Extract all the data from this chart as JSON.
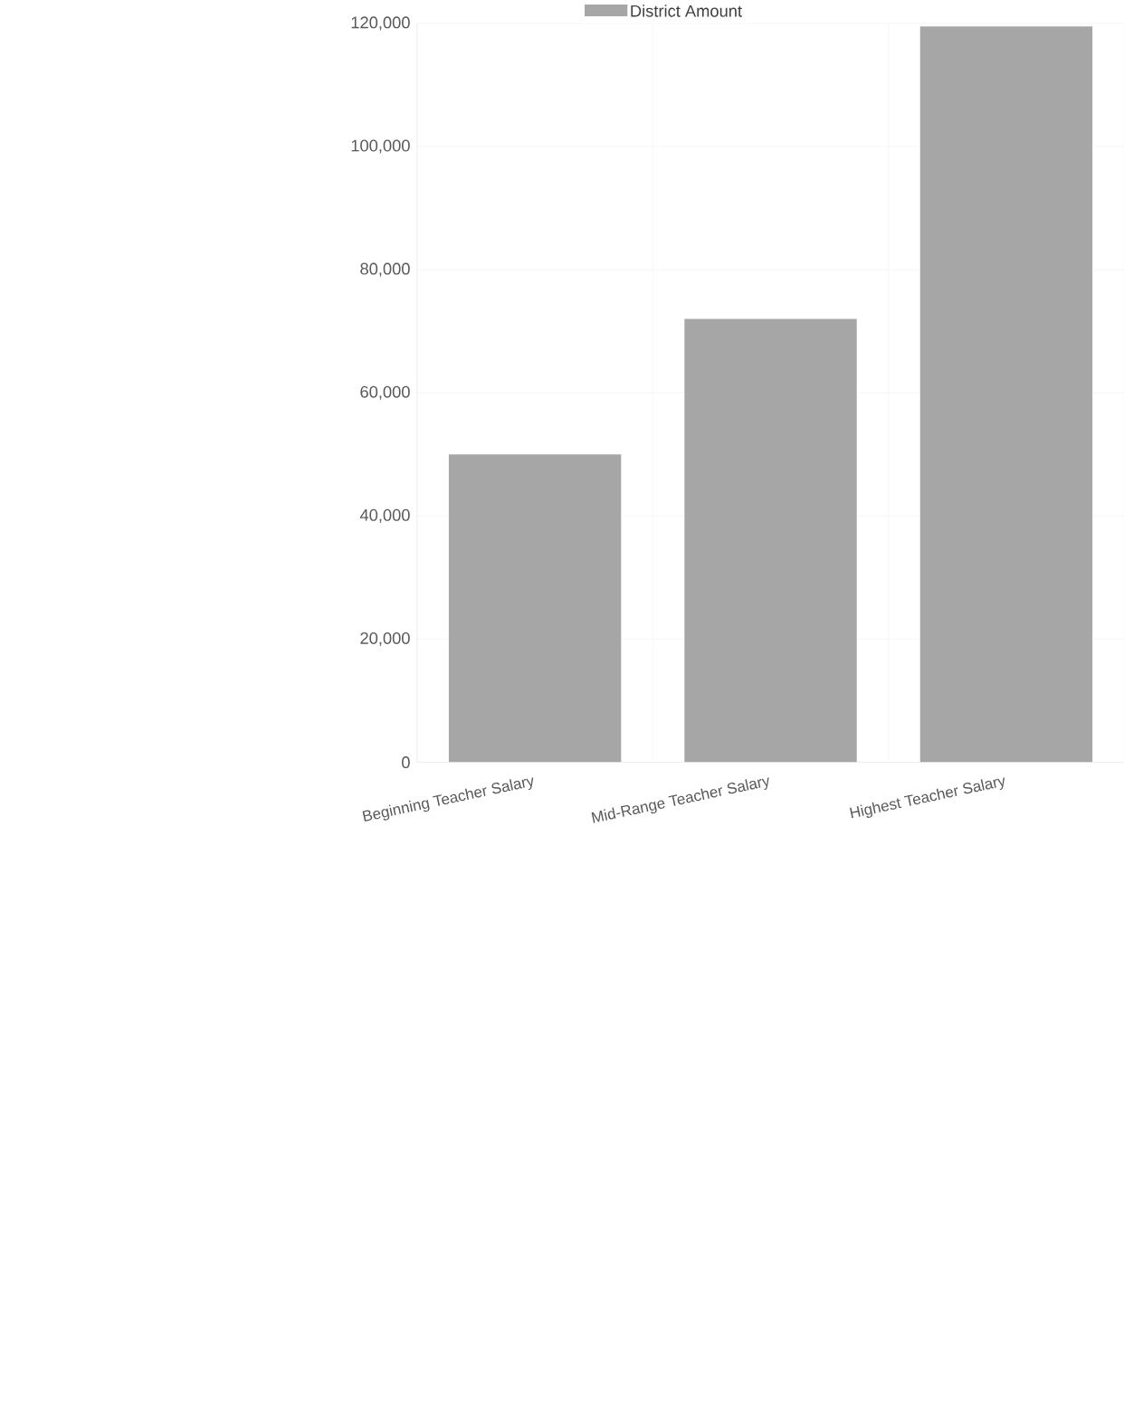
{
  "chart_data": {
    "type": "bar",
    "categories": [
      "Beginning Teacher Salary",
      "Mid-Range Teacher Salary",
      "Highest Teacher Salary"
    ],
    "series": [
      {
        "name": "District Amount",
        "color": "#a6a6a6",
        "values": [
          50000,
          72000,
          119500
        ]
      }
    ],
    "ylim": [
      0,
      120000
    ],
    "yticks": [
      0,
      {
        "value": 20000,
        "label": "20,000"
      },
      {
        "value": 40000,
        "label": "40,000"
      },
      {
        "value": 60000,
        "label": "60,000"
      },
      {
        "value": 80000,
        "label": "80,000"
      },
      {
        "value": 100000,
        "label": "100,000"
      },
      {
        "value": 120000,
        "label": "120,000"
      }
    ],
    "grid": true,
    "legend": "top"
  }
}
